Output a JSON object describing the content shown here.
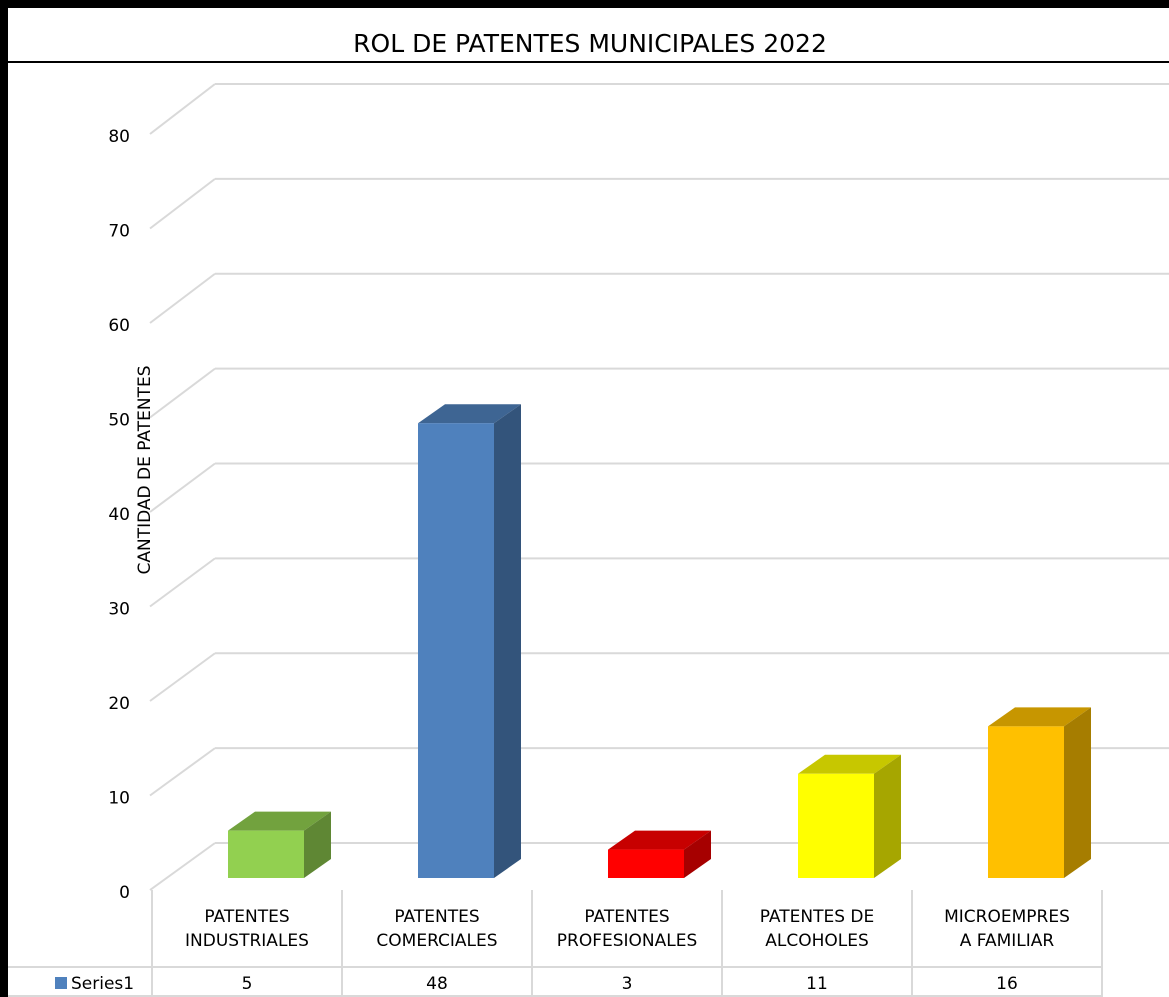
{
  "chart_data": {
    "type": "bar3d",
    "title": "ROL DE PATENTES MUNICIPALES 2022",
    "y_label": "CANTIDAD DE PATENTES",
    "categories": [
      "PATENTES\nINDUSTRIALES",
      "PATENTES\nCOMERCIALES",
      "PATENTES\nPROFESIONALES",
      "PATENTES DE\nALCOHOLES",
      "MICROEMPRES\nA FAMILIAR"
    ],
    "series": [
      {
        "name": "Series1",
        "color": "#4f81bd",
        "values": [
          5,
          48,
          3,
          11,
          16
        ],
        "point_colors": [
          "#92d050",
          "#4f81bd",
          "#ff0000",
          "#ffff00",
          "#ffc000"
        ]
      }
    ],
    "ylim": [
      0,
      80
    ],
    "yticks": [
      0,
      10,
      20,
      30,
      40,
      50,
      60,
      70,
      80
    ],
    "grid": true,
    "data_table": true
  }
}
